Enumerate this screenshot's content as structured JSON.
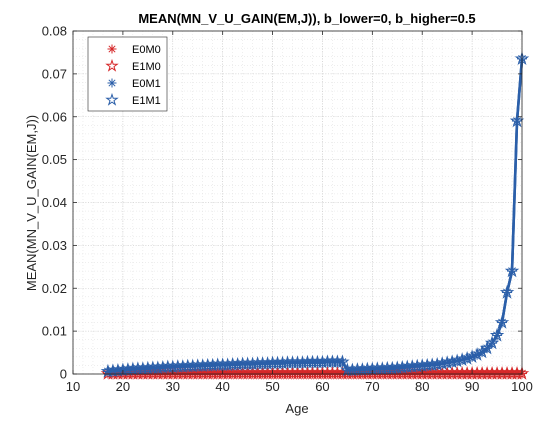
{
  "chart_data": {
    "type": "line",
    "title": "MEAN(MN_V_U_GAIN(EM,J)), b_lower=0, b_higher=0.5",
    "xlabel": "Age",
    "ylabel": "MEAN(MN_V_U_GAIN(EM,J))",
    "xlim": [
      10,
      100
    ],
    "ylim": [
      0,
      0.08
    ],
    "xticks": [
      10,
      20,
      30,
      40,
      50,
      60,
      70,
      80,
      90,
      100
    ],
    "yticks": [
      0,
      0.01,
      0.02,
      0.03,
      0.04,
      0.05,
      0.06,
      0.07,
      0.08
    ],
    "grid": "on (major and minor, dotted)",
    "legend_position": "top-left",
    "x": [
      17,
      18,
      19,
      20,
      21,
      22,
      23,
      24,
      25,
      26,
      27,
      28,
      29,
      30,
      31,
      32,
      33,
      34,
      35,
      36,
      37,
      38,
      39,
      40,
      41,
      42,
      43,
      44,
      45,
      46,
      47,
      48,
      49,
      50,
      51,
      52,
      53,
      54,
      55,
      56,
      57,
      58,
      59,
      60,
      61,
      62,
      63,
      64,
      65,
      66,
      67,
      68,
      69,
      70,
      71,
      72,
      73,
      74,
      75,
      76,
      77,
      78,
      79,
      80,
      81,
      82,
      83,
      84,
      85,
      86,
      87,
      88,
      89,
      90,
      91,
      92,
      93,
      94,
      95,
      96,
      97,
      98,
      99,
      100
    ],
    "series": [
      {
        "name": "E0M0",
        "color": "#d62728",
        "marker": "asterisk",
        "values": [
          0.0001,
          0.0001,
          0.0001,
          0.0001,
          0.0001,
          0.0001,
          0.0001,
          0.0001,
          0.0001,
          0.0001,
          0.0001,
          0.0001,
          0.0001,
          0.0001,
          0.0001,
          0.0001,
          0.0001,
          0.0001,
          0.0001,
          0.0001,
          0.0001,
          0.0001,
          0.0001,
          0.0001,
          0.0001,
          0.0001,
          0.0001,
          0.0001,
          0.0001,
          0.0001,
          0.0001,
          0.0001,
          0.0001,
          0.0001,
          0.0001,
          0.0001,
          0.0001,
          0.0001,
          0.0001,
          0.0001,
          0.0001,
          0.0001,
          0.0001,
          0.0001,
          0.0001,
          0.0001,
          0.0001,
          0.0001,
          0.0001,
          0.0001,
          0.0001,
          0.0001,
          0.0001,
          0.0001,
          0.0001,
          0.0001,
          0.0001,
          0.0001,
          0.0001,
          0.0001,
          0.0001,
          0.0001,
          0.0001,
          0.0001,
          0.0001,
          0.0001,
          0.0001,
          0.0001,
          0.0001,
          0.0001,
          0.0001,
          0.0001,
          0.0001,
          0.0001,
          0.0001,
          0.0001,
          0.0001,
          0.0001,
          0.0001,
          0.0001,
          0.0001,
          0.0001,
          0.0001,
          0.0001
        ]
      },
      {
        "name": "E1M0",
        "color": "#d62728",
        "marker": "pentagram",
        "values": [
          0.0001,
          0.0001,
          0.0001,
          0.0001,
          0.0001,
          0.0001,
          0.0001,
          0.0001,
          0.0001,
          0.0001,
          0.0001,
          0.0001,
          0.0001,
          0.0001,
          0.0001,
          0.0001,
          0.0001,
          0.0001,
          0.0001,
          0.0001,
          0.0001,
          0.0001,
          0.0001,
          0.0001,
          0.0001,
          0.0001,
          0.0001,
          0.0001,
          0.0001,
          0.0001,
          0.0001,
          0.0001,
          0.0001,
          0.0001,
          0.0001,
          0.0001,
          0.0001,
          0.0001,
          0.0001,
          0.0001,
          0.0001,
          0.0001,
          0.0001,
          0.0001,
          0.0001,
          0.0001,
          0.0001,
          0.0001,
          0.0001,
          0.0001,
          0.0001,
          0.0001,
          0.0001,
          0.0001,
          0.0001,
          0.0001,
          0.0001,
          0.0001,
          0.0001,
          0.0001,
          0.0001,
          0.0001,
          0.0001,
          0.0001,
          0.0001,
          0.0001,
          0.0001,
          0.0001,
          0.0001,
          0.0001,
          0.0001,
          0.0001,
          0.0001,
          0.0001,
          0.0001,
          0.0001,
          0.0001,
          0.0001,
          0.0001,
          0.0001,
          0.0001,
          0.0001,
          0.0001,
          0.0001
        ]
      },
      {
        "name": "E0M1",
        "color": "#2b5fa9",
        "marker": "asterisk",
        "values": [
          0.0006,
          0.0007,
          0.0008,
          0.0009,
          0.001,
          0.0011,
          0.0012,
          0.0012,
          0.0013,
          0.0014,
          0.0014,
          0.0015,
          0.0016,
          0.0016,
          0.0017,
          0.0017,
          0.0018,
          0.0018,
          0.0019,
          0.0019,
          0.002,
          0.002,
          0.0021,
          0.0021,
          0.0021,
          0.0022,
          0.0022,
          0.0023,
          0.0023,
          0.0023,
          0.0024,
          0.0024,
          0.0024,
          0.0025,
          0.0025,
          0.0025,
          0.0026,
          0.0026,
          0.0026,
          0.0026,
          0.0027,
          0.0027,
          0.0027,
          0.0027,
          0.0028,
          0.0028,
          0.0028,
          0.0028,
          0.0009,
          0.0009,
          0.001,
          0.001,
          0.0011,
          0.0011,
          0.0012,
          0.0012,
          0.0013,
          0.0013,
          0.0014,
          0.0015,
          0.0016,
          0.0017,
          0.0018,
          0.0019,
          0.002,
          0.0021,
          0.0022,
          0.0024,
          0.0026,
          0.0028,
          0.003,
          0.0033,
          0.0036,
          0.004,
          0.0045,
          0.0051,
          0.006,
          0.0072,
          0.009,
          0.012,
          0.019,
          0.024,
          0.059,
          0.0735
        ]
      },
      {
        "name": "E1M1",
        "color": "#2b5fa9",
        "marker": "pentagram",
        "values": [
          0.0006,
          0.0007,
          0.0008,
          0.0009,
          0.001,
          0.0011,
          0.0012,
          0.0012,
          0.0013,
          0.0014,
          0.0014,
          0.0015,
          0.0016,
          0.0016,
          0.0017,
          0.0017,
          0.0018,
          0.0018,
          0.0019,
          0.0019,
          0.002,
          0.002,
          0.0021,
          0.0021,
          0.0021,
          0.0022,
          0.0022,
          0.0023,
          0.0023,
          0.0023,
          0.0024,
          0.0024,
          0.0024,
          0.0025,
          0.0025,
          0.0025,
          0.0026,
          0.0026,
          0.0026,
          0.0026,
          0.0027,
          0.0027,
          0.0027,
          0.0027,
          0.0028,
          0.0028,
          0.0028,
          0.0028,
          0.0009,
          0.0009,
          0.001,
          0.001,
          0.0011,
          0.0011,
          0.0012,
          0.0012,
          0.0013,
          0.0013,
          0.0014,
          0.0015,
          0.0016,
          0.0017,
          0.0018,
          0.0019,
          0.002,
          0.0021,
          0.0022,
          0.0024,
          0.0026,
          0.0028,
          0.003,
          0.0033,
          0.0036,
          0.004,
          0.0045,
          0.0051,
          0.006,
          0.0072,
          0.009,
          0.012,
          0.019,
          0.024,
          0.059,
          0.0735
        ]
      }
    ]
  }
}
